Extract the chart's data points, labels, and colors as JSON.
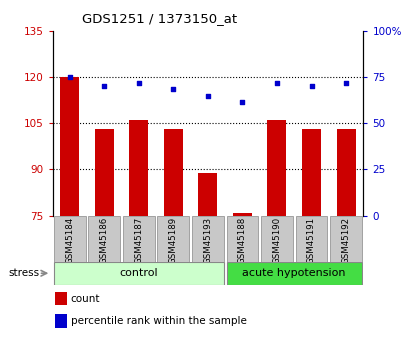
{
  "title": "GDS1251 / 1373150_at",
  "samples": [
    "GSM45184",
    "GSM45186",
    "GSM45187",
    "GSM45189",
    "GSM45193",
    "GSM45188",
    "GSM45190",
    "GSM45191",
    "GSM45192"
  ],
  "bar_values": [
    120,
    103,
    106,
    103,
    89,
    76,
    106,
    103,
    103
  ],
  "dot_values": [
    120,
    117,
    118,
    116,
    114,
    112,
    118,
    117,
    118
  ],
  "bar_color": "#cc0000",
  "dot_color": "#0000cc",
  "ylim_left": [
    75,
    135
  ],
  "ylim_right": [
    0,
    100
  ],
  "yticks_left": [
    75,
    90,
    105,
    120,
    135
  ],
  "yticks_right": [
    0,
    25,
    50,
    75,
    100
  ],
  "ytick_labels_right": [
    "0",
    "25",
    "50",
    "75",
    "100%"
  ],
  "grid_lines": [
    90,
    105,
    120
  ],
  "n_control": 5,
  "n_acute": 4,
  "control_label": "control",
  "acute_label": "acute hypotension",
  "stress_label": "stress",
  "legend_count": "count",
  "legend_pct": "percentile rank within the sample",
  "bg_xticklabel": "#c8c8c8",
  "bg_control": "#ccffcc",
  "bg_acute": "#44dd44",
  "left_tick_color": "#cc0000",
  "right_tick_color": "#0000cc"
}
